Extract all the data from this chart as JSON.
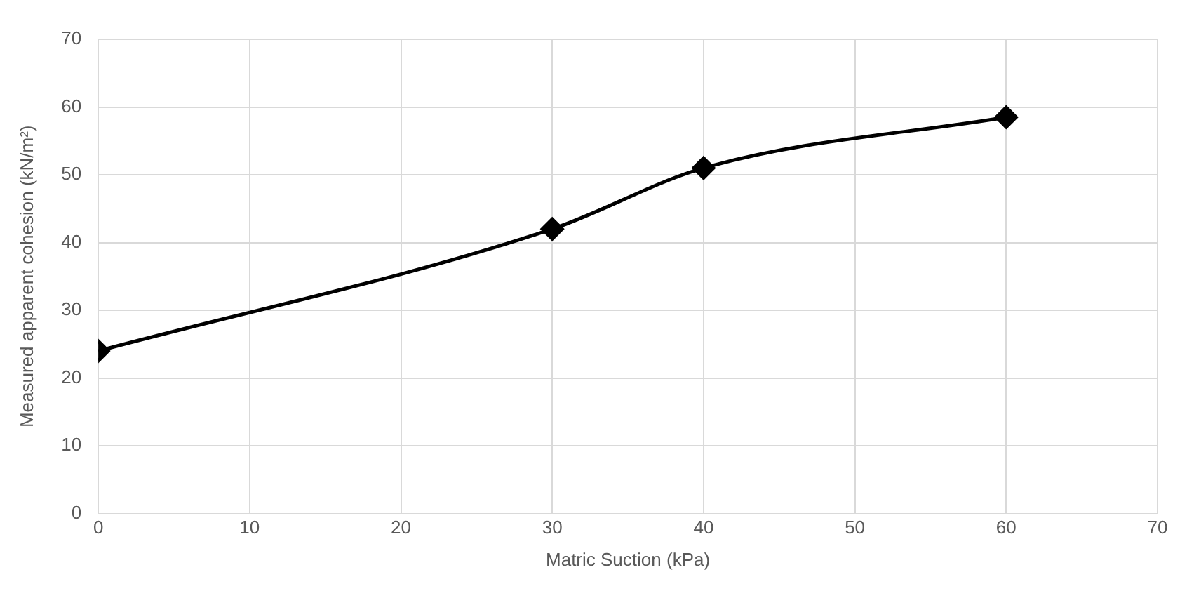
{
  "chart_data": {
    "type": "line",
    "xlabel": "Matric Suction (kPa)",
    "ylabel": "Measured apparent cohesion (kN/m²)",
    "x": [
      0,
      30,
      40,
      60
    ],
    "series": [
      {
        "color": "#000000",
        "values": [
          24,
          42,
          51,
          58.5
        ]
      }
    ],
    "xlim": [
      0,
      70
    ],
    "xticks": [
      0,
      10,
      20,
      30,
      40,
      50,
      60,
      70
    ],
    "ylim": [
      0,
      70
    ],
    "yticks": [
      0,
      10,
      20,
      30,
      40,
      50,
      60,
      70
    ],
    "grid": true,
    "legend": false,
    "marker": "diamond",
    "line_style": "solid"
  }
}
